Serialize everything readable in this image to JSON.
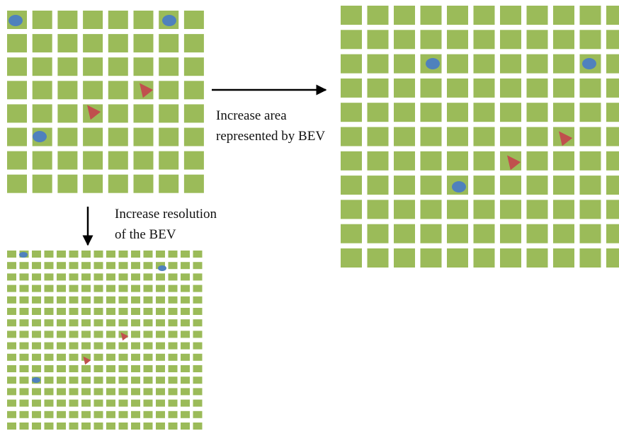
{
  "labels": {
    "area": [
      "Increase area",
      "represented by BEV"
    ],
    "resolution": [
      "Increase resolution",
      "of the BEV"
    ]
  }
}
